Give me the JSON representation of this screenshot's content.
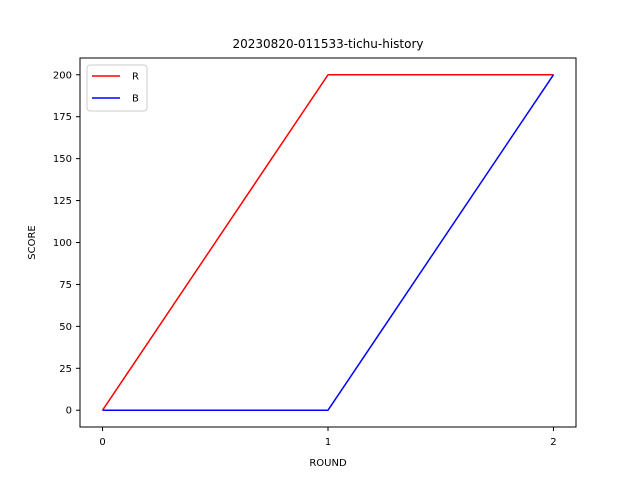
{
  "chart_data": {
    "type": "line",
    "title": "20230820-011533-tichu-history",
    "xlabel": "ROUND",
    "ylabel": "SCORE",
    "x": [
      0,
      1,
      2
    ],
    "x_ticks": [
      "0",
      "1",
      "2"
    ],
    "y_ticks": [
      "0",
      "25",
      "50",
      "75",
      "100",
      "125",
      "150",
      "175",
      "200"
    ],
    "xlim": [
      -0.1,
      2.1
    ],
    "ylim": [
      -10,
      210
    ],
    "grid": false,
    "legend_position": "top-left",
    "series": [
      {
        "name": "R",
        "values": [
          0,
          200,
          200
        ],
        "color": "#ff0000"
      },
      {
        "name": "B",
        "values": [
          0,
          0,
          200
        ],
        "color": "#0000ff"
      }
    ]
  }
}
